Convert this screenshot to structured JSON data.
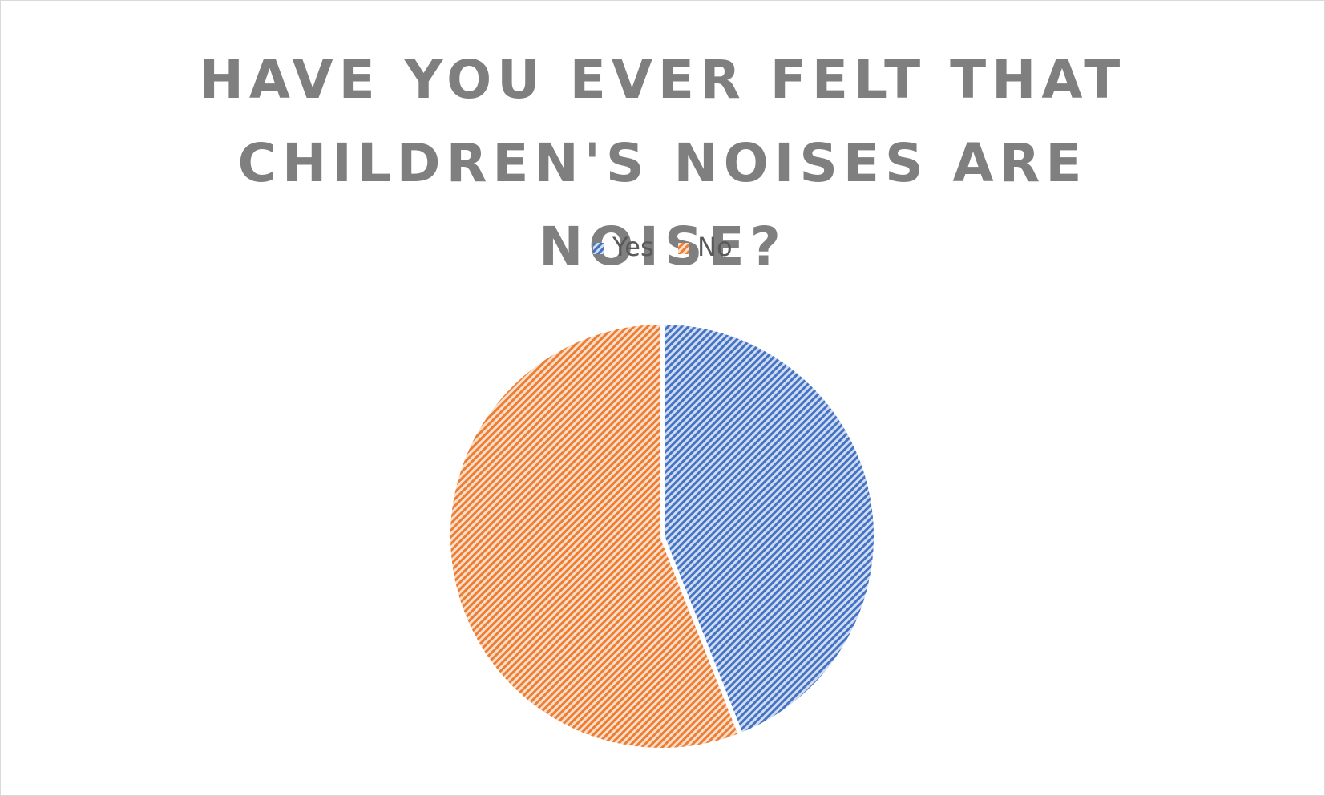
{
  "chart_data": {
    "type": "pie",
    "title": "HAVE YOU EVER FELT THAT CHILDREN'S NOISES ARE NOISE?",
    "categories": [
      "Yes",
      "No"
    ],
    "values": [
      44,
      56
    ],
    "colors": [
      "#4472c4",
      "#ed7d31"
    ],
    "legend": "top"
  }
}
